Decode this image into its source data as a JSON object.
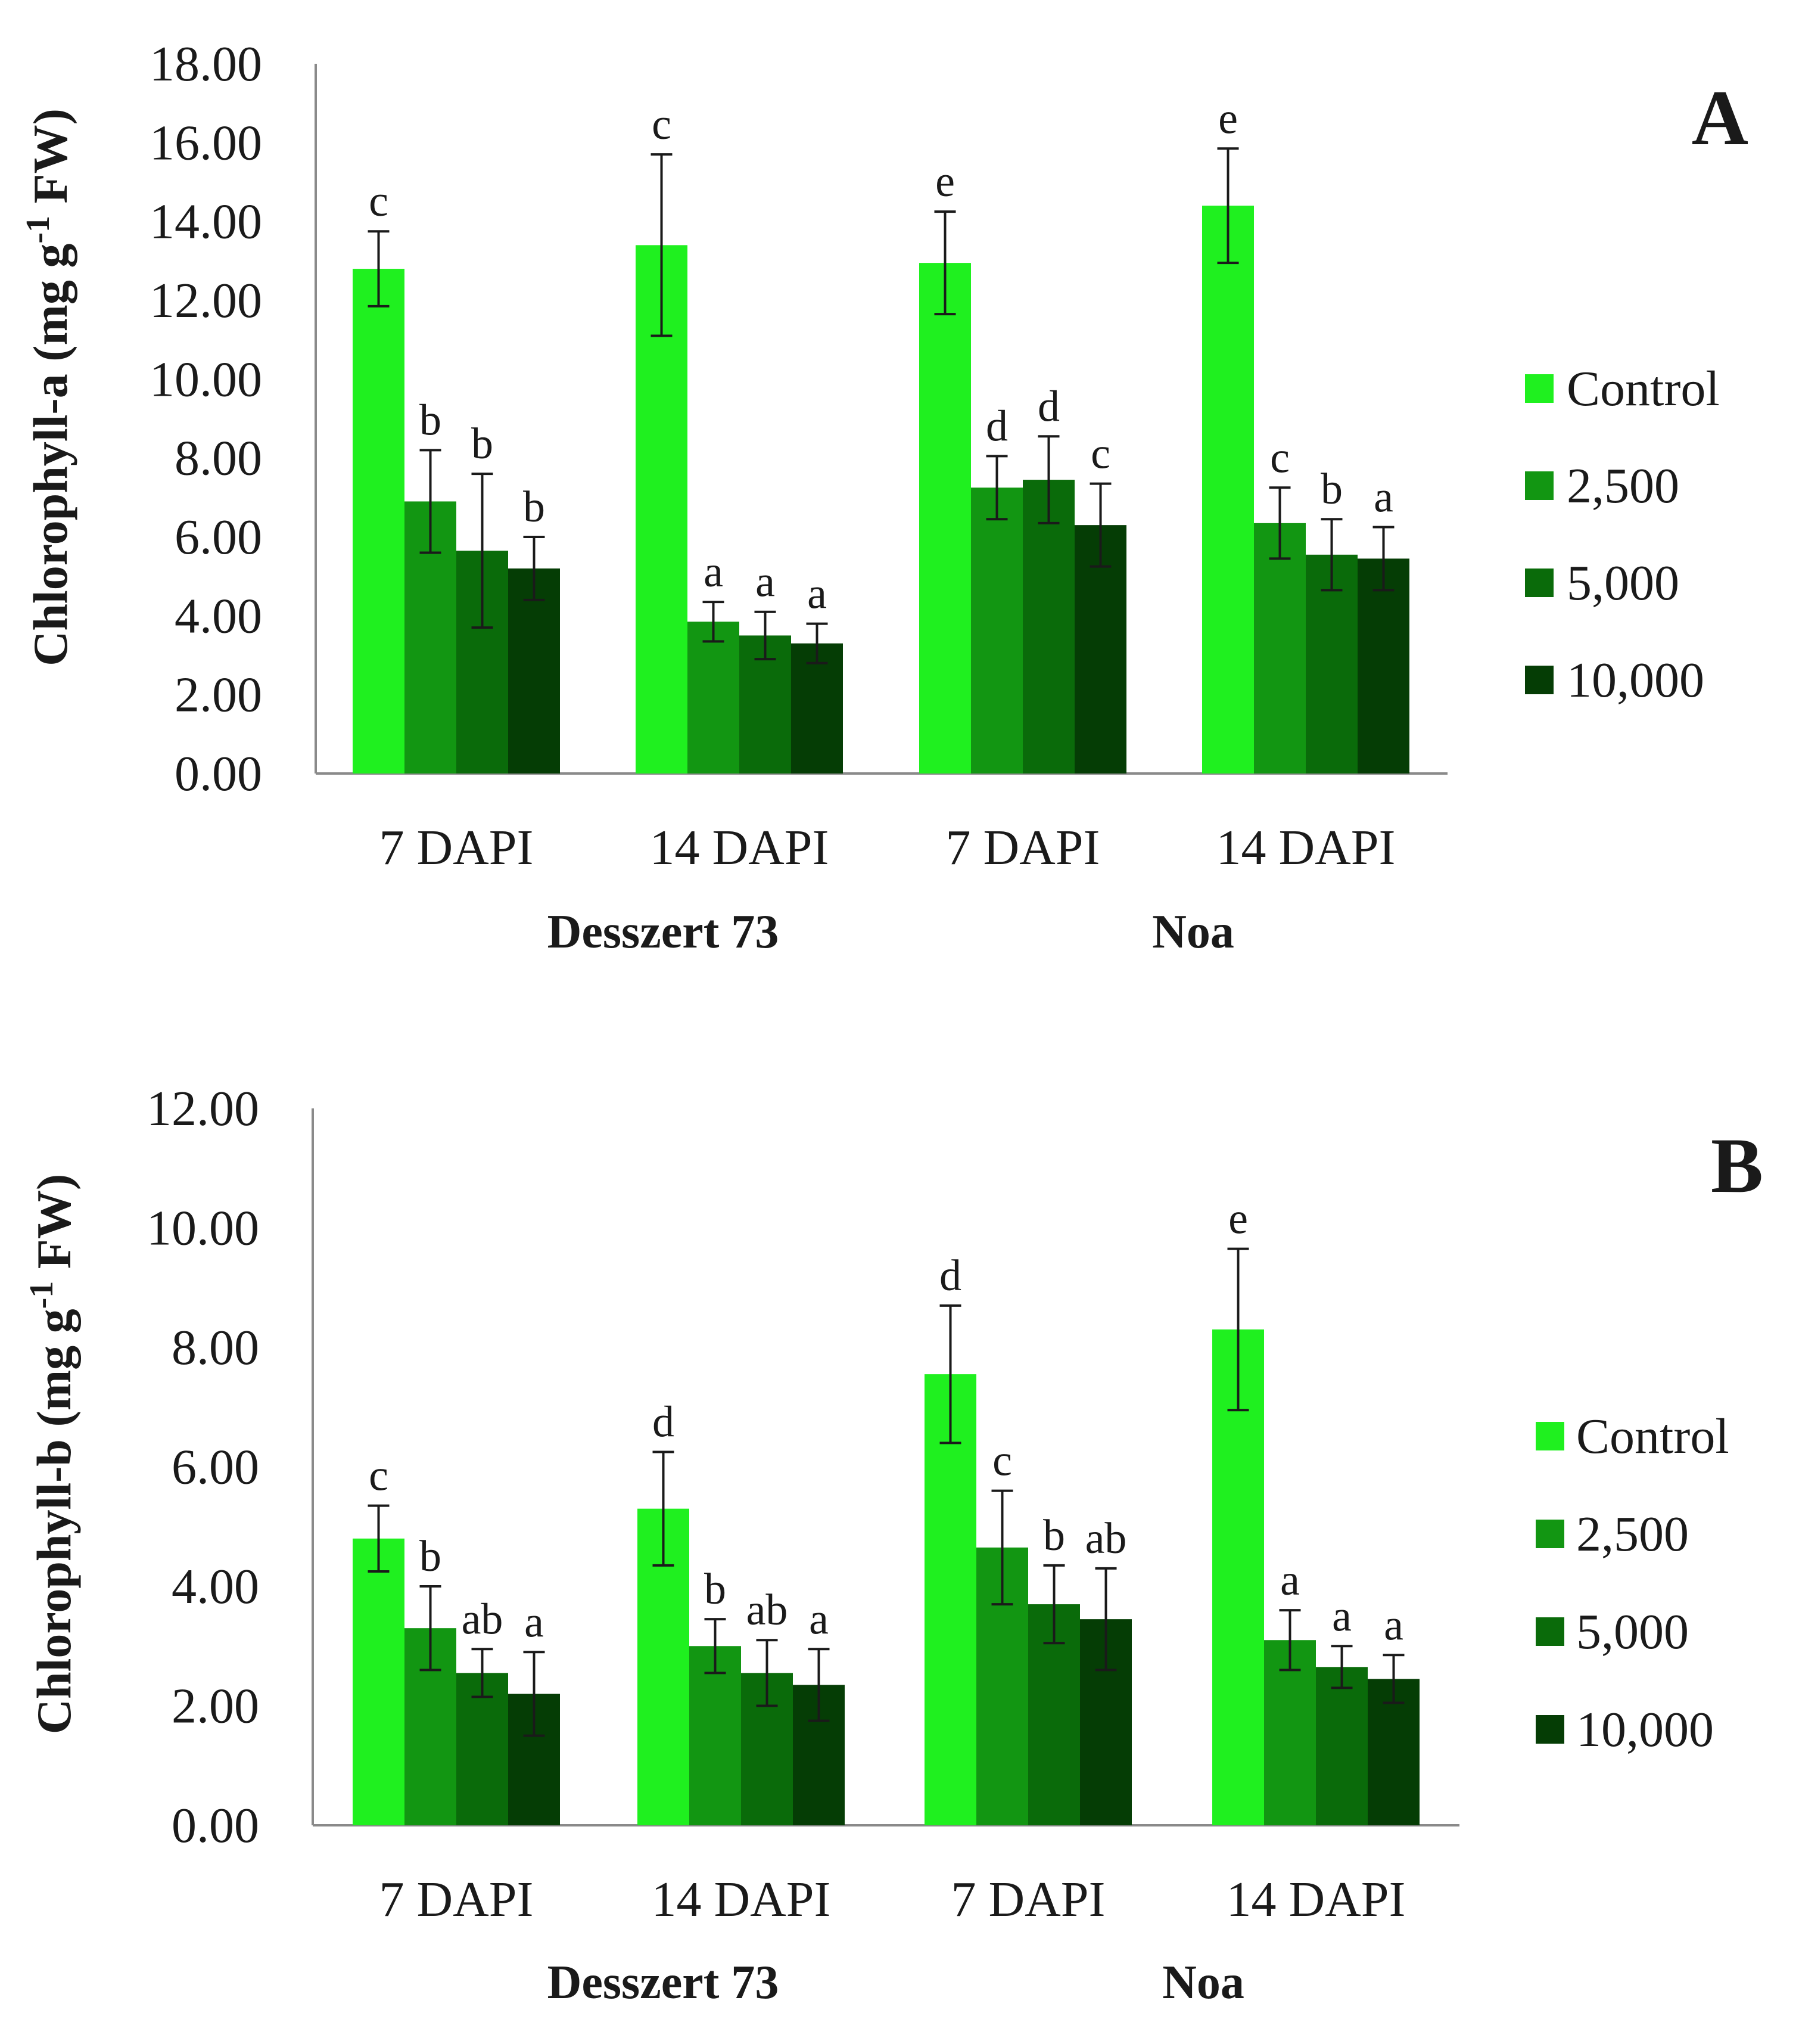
{
  "chart_data": [
    {
      "type": "bar",
      "panel_label": "A",
      "ylabel_pre": "Chlorophyll-a (mg g",
      "ylabel_sup": "-1",
      "ylabel_post": " FW)",
      "ylim": [
        0,
        18
      ],
      "yticks": [
        "0.00",
        "2.00",
        "4.00",
        "6.00",
        "8.00",
        "10.00",
        "12.00",
        "14.00",
        "16.00",
        "18.00"
      ],
      "categories": [
        "7 DAPI",
        "14 DAPI",
        "7 DAPI",
        "14 DAPI"
      ],
      "groups": [
        {
          "label": "Desszert 73",
          "span": [
            0,
            1
          ]
        },
        {
          "label": "Noa",
          "span": [
            2,
            3
          ]
        }
      ],
      "series": [
        {
          "name": "Control",
          "color": "#1FF01F",
          "values": [
            12.8,
            13.4,
            12.95,
            14.4
          ],
          "errors": [
            0.95,
            2.3,
            1.3,
            1.45
          ],
          "letters": [
            "c",
            "c",
            "e",
            "e"
          ]
        },
        {
          "name": "2,500",
          "color": "#129612",
          "values": [
            6.9,
            3.85,
            7.25,
            6.35
          ],
          "errors": [
            1.3,
            0.5,
            0.8,
            0.9
          ],
          "letters": [
            "b",
            "a",
            "d",
            "c"
          ]
        },
        {
          "name": "5,000",
          "color": "#0A6B0A",
          "values": [
            5.65,
            3.5,
            7.45,
            5.55
          ],
          "errors": [
            1.95,
            0.6,
            1.1,
            0.9
          ],
          "letters": [
            "b",
            "a",
            "d",
            "b"
          ]
        },
        {
          "name": "10,000",
          "color": "#053D05",
          "values": [
            5.2,
            3.3,
            6.3,
            5.45
          ],
          "errors": [
            0.8,
            0.5,
            1.05,
            0.8
          ],
          "letters": [
            "b",
            "a",
            "c",
            "a"
          ]
        }
      ],
      "legend": [
        "Control",
        "2,500",
        "5,000",
        "10,000"
      ]
    },
    {
      "type": "bar",
      "panel_label": "B",
      "ylabel_pre": "Chlorophyll-b (mg g",
      "ylabel_sup": "-1",
      "ylabel_post": " FW)",
      "ylim": [
        0,
        12
      ],
      "yticks": [
        "0.00",
        "2.00",
        "4.00",
        "6.00",
        "8.00",
        "10.00",
        "12.00"
      ],
      "categories": [
        "7 DAPI",
        "14 DAPI",
        "7 DAPI",
        "14 DAPI"
      ],
      "groups": [
        {
          "label": "Desszert 73",
          "span": [
            0,
            1
          ]
        },
        {
          "label": "Noa",
          "span": [
            2,
            3
          ]
        }
      ],
      "series": [
        {
          "name": "Control",
          "color": "#1FF01F",
          "values": [
            4.8,
            5.3,
            7.55,
            8.3
          ],
          "errors": [
            0.55,
            0.95,
            1.15,
            1.35
          ],
          "letters": [
            "c",
            "d",
            "d",
            "e"
          ]
        },
        {
          "name": "2,500",
          "color": "#129612",
          "values": [
            3.3,
            3.0,
            4.65,
            3.1
          ],
          "errors": [
            0.7,
            0.45,
            0.95,
            0.5
          ],
          "letters": [
            "b",
            "b",
            "c",
            "a"
          ]
        },
        {
          "name": "5,000",
          "color": "#0A6B0A",
          "values": [
            2.55,
            2.55,
            3.7,
            2.65
          ],
          "errors": [
            0.4,
            0.55,
            0.65,
            0.35
          ],
          "letters": [
            "ab",
            "ab",
            "b",
            "a"
          ]
        },
        {
          "name": "10,000",
          "color": "#053D05",
          "values": [
            2.2,
            2.35,
            3.45,
            2.45
          ],
          "errors": [
            0.7,
            0.6,
            0.85,
            0.4
          ],
          "letters": [
            "a",
            "a",
            "ab",
            "a"
          ]
        }
      ],
      "legend": [
        "Control",
        "2,500",
        "5,000",
        "10,000"
      ]
    }
  ]
}
